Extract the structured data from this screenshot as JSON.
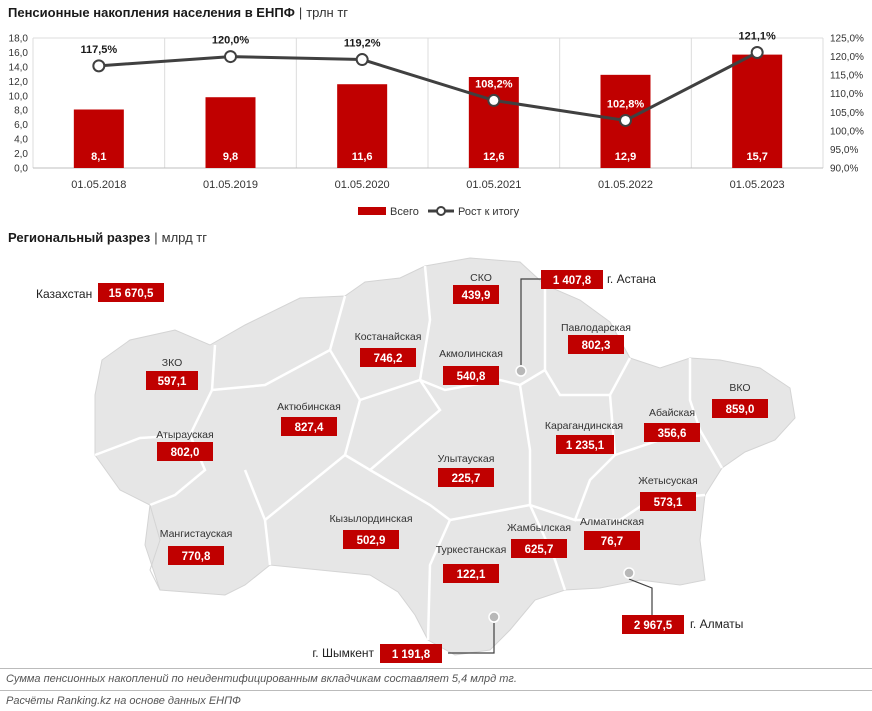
{
  "header1": {
    "title": "Пенсионные накопления населения в ЕНПФ",
    "sep": "|",
    "unit": "трлн тг"
  },
  "header2": {
    "title": "Региональный разрез",
    "sep": "|",
    "unit": "млрд тг"
  },
  "chart_data": {
    "type": "bar",
    "categories": [
      "01.05.2018",
      "01.05.2019",
      "01.05.2020",
      "01.05.2021",
      "01.05.2022",
      "01.05.2023"
    ],
    "series": [
      {
        "name": "Всего",
        "type": "bar",
        "axis": "left",
        "values": [
          8.1,
          9.8,
          11.6,
          12.6,
          12.9,
          15.7
        ],
        "labels": [
          "8,1",
          "9,8",
          "11,6",
          "12,6",
          "12,9",
          "15,7"
        ],
        "color": "#c00000"
      },
      {
        "name": "Рост к итогу",
        "type": "line",
        "axis": "right",
        "values": [
          117.5,
          120.0,
          119.2,
          108.2,
          102.8,
          121.1
        ],
        "labels": [
          "117,5%",
          "120,0%",
          "119,2%",
          "108,2%",
          "102,8%",
          "121,1%"
        ],
        "color": "#404040"
      }
    ],
    "ylim_left": [
      0,
      18
    ],
    "ylim_right": [
      90,
      125
    ],
    "yticks_left": [
      "0,0",
      "2,0",
      "4,0",
      "6,0",
      "8,0",
      "10,0",
      "12,0",
      "14,0",
      "16,0",
      "18,0"
    ],
    "yticks_right": [
      "90,0%",
      "95,0%",
      "100,0%",
      "105,0%",
      "110,0%",
      "115,0%",
      "120,0%",
      "125,0%"
    ],
    "grid": true,
    "legend": "bottom"
  },
  "regional": {
    "total": {
      "name": "Казахстан",
      "value": "15 670,5"
    },
    "regions": [
      {
        "name": "СКО",
        "value": "439,9"
      },
      {
        "name": "Павлодарская",
        "value": "802,3"
      },
      {
        "name": "Костанайская",
        "value": "746,2"
      },
      {
        "name": "Акмолинская",
        "value": "540,8"
      },
      {
        "name": "ЗКО",
        "value": "597,1"
      },
      {
        "name": "ВКО",
        "value": "859,0"
      },
      {
        "name": "Актюбинская",
        "value": "827,4"
      },
      {
        "name": "Абайская",
        "value": "356,6"
      },
      {
        "name": "Атырауская",
        "value": "802,0"
      },
      {
        "name": "Карагандинская",
        "value": "1 235,1"
      },
      {
        "name": "Улытауская",
        "value": "225,7"
      },
      {
        "name": "Жетысуская",
        "value": "573,1"
      },
      {
        "name": "Мангистауская",
        "value": "770,8"
      },
      {
        "name": "Кызылординская",
        "value": "502,9"
      },
      {
        "name": "Жамбылская",
        "value": "625,7"
      },
      {
        "name": "Алматинская",
        "value": "76,7"
      },
      {
        "name": "Туркестанская",
        "value": "122,1"
      }
    ],
    "cities": [
      {
        "name": "г. Астана",
        "value": "1 407,8"
      },
      {
        "name": "г. Алматы",
        "value": "2 967,5"
      },
      {
        "name": "г. Шымкент",
        "value": "1 191,8"
      }
    ]
  },
  "footer": {
    "note": "Сумма пенсионных накоплений по неидентифицированным вкладчикам составляет 5,4 млрд тг.",
    "source": "Расчёты Ranking.kz на основе данных ЕНПФ"
  },
  "colors": {
    "bar": "#c00000",
    "line": "#404040",
    "map_fill": "#e6e6e6",
    "map_border": "#ffffff"
  }
}
